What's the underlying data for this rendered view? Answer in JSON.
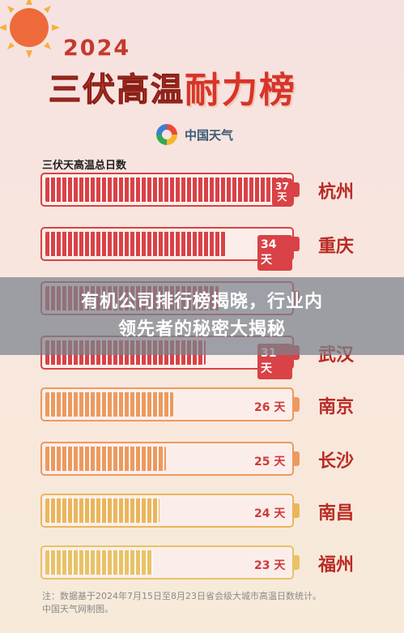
{
  "year": "2024",
  "title": {
    "main": "三伏高温",
    "accent": "耐力榜"
  },
  "brand": "中国天气",
  "subtitle": "三伏天高温总日数",
  "banner": {
    "line1": "有机公司排行榜揭晓，行业内",
    "line2": "领先者的秘密大揭秘"
  },
  "cities": [
    {
      "name": "杭州",
      "days_label": "37\n天",
      "days": 37,
      "color": "#d94246"
    },
    {
      "name": "重庆",
      "days_label": "34 天",
      "days": 34,
      "color": "#d94246"
    },
    {
      "name": "",
      "days_label": "",
      "days": 33,
      "color": "#d94246"
    },
    {
      "name": "武汉",
      "days_label": "31 天",
      "days": 31,
      "color": "#d94246"
    },
    {
      "name": "南京",
      "days_label": "26 天",
      "days": 26,
      "color": "#ec9a5e"
    },
    {
      "name": "长沙",
      "days_label": "25 天",
      "days": 25,
      "color": "#ec9a5e"
    },
    {
      "name": "南昌",
      "days_label": "24 天",
      "days": 24,
      "color": "#eab65a"
    },
    {
      "name": "福州",
      "days_label": "23 天",
      "days": 23,
      "color": "#e8c266"
    }
  ],
  "note": {
    "line1": "注：数据基于2024年7月15日至8月23日省会级大城市高温日数统计。",
    "line2": "中国天气网制图。"
  }
}
